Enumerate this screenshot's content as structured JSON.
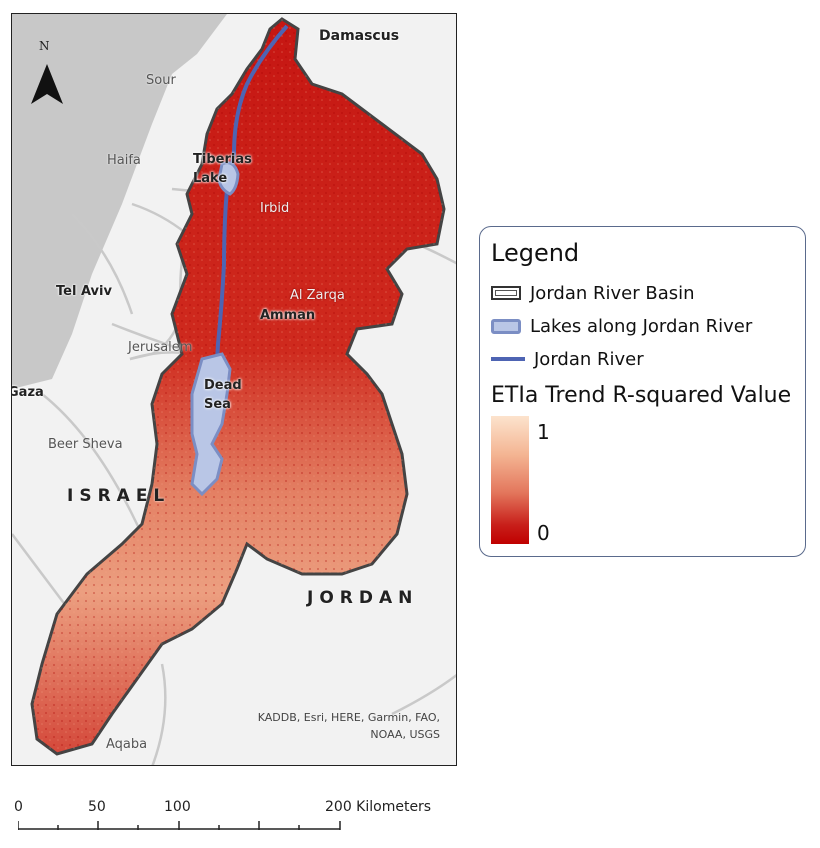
{
  "map": {
    "north_label": "N",
    "place_labels": {
      "damascus": "Damascus",
      "sour": "Sour",
      "haifa": "Haifa",
      "tiberias": "Tiberias",
      "tiberias2": "Lake",
      "irbid": "Irbid",
      "tel_aviv": "Tel Aviv",
      "al_zarqa": "Al Zarqa",
      "amman": "Amman",
      "jerusalem": "Jerusalem",
      "dead": "Dead",
      "sea": "Sea",
      "gaza": "Gaza",
      "beer_sheva": "Beer Sheva",
      "israel": "ISRAEL",
      "jordan": "JORDAN",
      "aqaba": "Aqaba"
    },
    "credits_line1": "KADDB, Esri, HERE, Garmin, FAO,",
    "credits_line2": "NOAA, USGS",
    "colors": {
      "sea": "#c8c8c8",
      "land": "#f2f2f2",
      "basin_high": "#fce3cd",
      "basin_low": "#c00000",
      "lake_fill": "#b9c6e6",
      "lake_outline": "#7b8ec4",
      "river": "#4e64b3"
    }
  },
  "legend": {
    "title": "Legend",
    "items": [
      {
        "label": "Jordan River Basin",
        "icon": "basin-outline-swatch"
      },
      {
        "label": "Lakes along Jordan River",
        "icon": "lake-swatch"
      },
      {
        "label": "Jordan River",
        "icon": "river-line-swatch"
      }
    ],
    "ramp_title": "ETIa Trend R-squared Value",
    "ramp_high": "1",
    "ramp_low": "0"
  },
  "scalebar": {
    "labels": [
      "0",
      "50",
      "100",
      "200 Kilometers"
    ]
  }
}
